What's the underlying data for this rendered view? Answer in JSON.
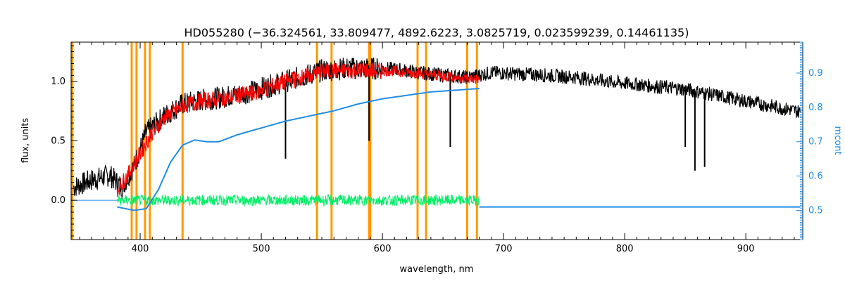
{
  "chart_data": {
    "type": "line",
    "title": "HD055280   (−36.324561, 33.809477, 4892.6223, 3.0825719, 0.023599239, 0.14461135)",
    "xlabel": "wavelength, nm",
    "ylabel": "flux, units",
    "y2label": "mcont",
    "xlim": [
      343,
      947
    ],
    "ylim": [
      -0.33,
      1.33
    ],
    "y2lim": [
      0.415,
      0.99
    ],
    "x_ticks": [
      400,
      500,
      600,
      700,
      800,
      900
    ],
    "y_ticks": [
      0.0,
      0.5,
      1.0
    ],
    "y2_ticks": [
      0.5,
      0.6,
      0.7,
      0.8,
      0.9
    ],
    "x_tick_labels": [
      "400",
      "500",
      "600",
      "700",
      "800",
      "900"
    ],
    "y_tick_labels": [
      "0.0",
      "0.5",
      "1.0"
    ],
    "y2_tick_labels": [
      "0.5",
      "0.6",
      "0.7",
      "0.8",
      "0.9"
    ],
    "colors": {
      "observed": "#000000",
      "model": "#ff0000",
      "residual": "#00ee66",
      "continuum": "#1f8ce6",
      "mask": "#ff9900",
      "axis": "#000000",
      "right_axis": "#1f8ce6"
    },
    "mask_lines_nm": [
      344,
      393,
      397,
      404,
      408,
      435,
      546,
      558,
      589,
      590,
      629,
      636,
      670,
      678
    ],
    "series": [
      {
        "key": "observed",
        "x": [
          345,
          360,
          375,
          385,
          395,
          405,
          420,
          435,
          450,
          470,
          490,
          510,
          530,
          550,
          570,
          590,
          610,
          630,
          650,
          670,
          690,
          710,
          730,
          760,
          790,
          820,
          850,
          880,
          910,
          930,
          945
        ],
        "y": [
          0.12,
          0.18,
          0.22,
          0.12,
          0.3,
          0.58,
          0.72,
          0.82,
          0.85,
          0.88,
          0.92,
          0.98,
          1.04,
          1.1,
          1.12,
          1.12,
          1.11,
          1.08,
          1.06,
          1.04,
          1.08,
          1.07,
          1.06,
          1.04,
          1.0,
          0.97,
          0.94,
          0.88,
          0.82,
          0.78,
          0.75
        ]
      },
      {
        "key": "model",
        "x": [
          381,
          390,
          400,
          410,
          420,
          435,
          450,
          470,
          490,
          510,
          530,
          550,
          570,
          590,
          610,
          630,
          650,
          670,
          680
        ],
        "y": [
          0.1,
          0.22,
          0.4,
          0.58,
          0.7,
          0.8,
          0.84,
          0.87,
          0.9,
          0.97,
          1.03,
          1.09,
          1.1,
          1.1,
          1.09,
          1.07,
          1.05,
          1.03,
          1.02
        ]
      },
      {
        "key": "continuum",
        "x": [
          381,
          395,
          405,
          415,
          425,
          435,
          445,
          455,
          465,
          480,
          500,
          520,
          540,
          560,
          580,
          600,
          620,
          640,
          660,
          680
        ],
        "y": [
          0.51,
          0.5,
          0.505,
          0.56,
          0.64,
          0.69,
          0.705,
          0.7,
          0.7,
          0.72,
          0.74,
          0.76,
          0.775,
          0.79,
          0.81,
          0.825,
          0.835,
          0.845,
          0.85,
          0.855
        ]
      },
      {
        "key": "residual",
        "x": [
          381,
          680
        ],
        "y": [
          0.0,
          0.0
        ]
      },
      {
        "key": "continuum_flat",
        "x": [
          680,
          945
        ],
        "y": [
          0.51,
          0.51
        ]
      }
    ]
  }
}
